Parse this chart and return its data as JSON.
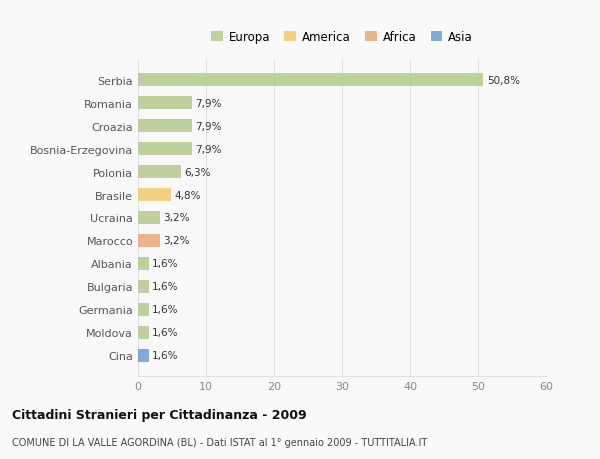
{
  "countries": [
    "Serbia",
    "Romania",
    "Croazia",
    "Bosnia-Erzegovina",
    "Polonia",
    "Brasile",
    "Ucraina",
    "Marocco",
    "Albania",
    "Bulgaria",
    "Germania",
    "Moldova",
    "Cina"
  ],
  "values": [
    50.8,
    7.9,
    7.9,
    7.9,
    6.3,
    4.8,
    3.2,
    3.2,
    1.6,
    1.6,
    1.6,
    1.6,
    1.6
  ],
  "labels": [
    "50,8%",
    "7,9%",
    "7,9%",
    "7,9%",
    "6,3%",
    "4,8%",
    "3,2%",
    "3,2%",
    "1,6%",
    "1,6%",
    "1,6%",
    "1,6%",
    "1,6%"
  ],
  "colors": [
    "#b5c98e",
    "#b5c98e",
    "#b5c98e",
    "#b5c98e",
    "#b5c98e",
    "#f0c96e",
    "#b5c98e",
    "#e8a97a",
    "#b5c98e",
    "#b5c98e",
    "#b5c98e",
    "#b5c98e",
    "#6e9dc8"
  ],
  "legend_labels": [
    "Europa",
    "America",
    "Africa",
    "Asia"
  ],
  "legend_colors": [
    "#b5c98e",
    "#f0c96e",
    "#e8a97a",
    "#6e9dc8"
  ],
  "title": "Cittadini Stranieri per Cittadinanza - 2009",
  "subtitle": "COMUNE DI LA VALLE AGORDINA (BL) - Dati ISTAT al 1° gennaio 2009 - TUTTITALIA.IT",
  "xlim": [
    0,
    60
  ],
  "xticks": [
    0,
    10,
    20,
    30,
    40,
    50,
    60
  ],
  "background_color": "#f9f9f9",
  "grid_color": "#e0e0e0",
  "bar_height": 0.55
}
